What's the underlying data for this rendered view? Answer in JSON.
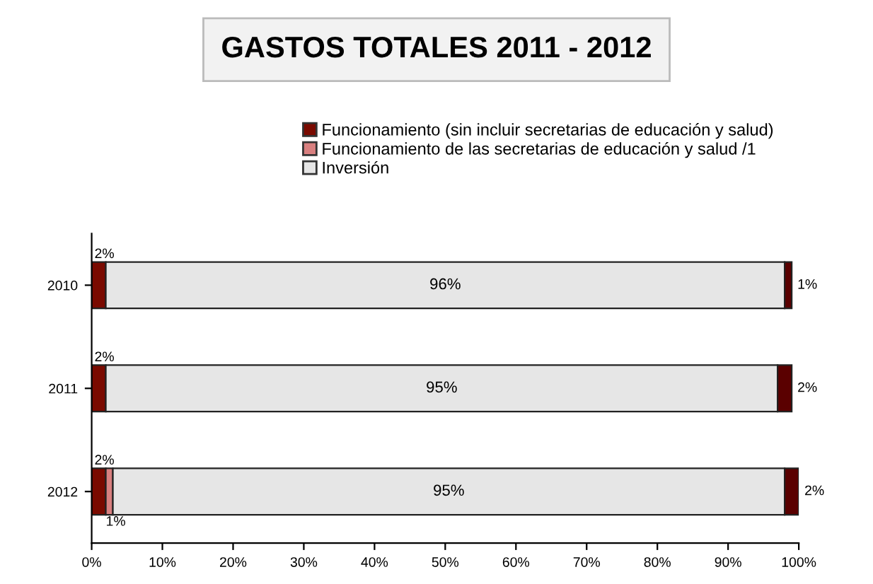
{
  "chart_data": {
    "type": "bar",
    "orientation": "horizontal",
    "stacked": true,
    "title": "GASTOS TOTALES 2011 - 2012",
    "categories": [
      "2010",
      "2011",
      "2012"
    ],
    "series": [
      {
        "name": "Funcionamiento (sin incluir secretarias de educación y salud)",
        "color": "#7a0a00",
        "values": [
          2,
          2,
          2
        ],
        "value_labels": [
          "2%",
          "2%",
          "2%"
        ]
      },
      {
        "name": "Funcionamiento de las secretarias de educación y salud /1",
        "color": "#d98080",
        "values": [
          null,
          null,
          1
        ],
        "value_labels": [
          null,
          null,
          "1%"
        ]
      },
      {
        "name": "Inversión",
        "color": "#e6e6e6",
        "values": [
          96,
          95,
          95
        ],
        "value_labels": [
          "96%",
          "95%",
          "95%"
        ]
      },
      {
        "color": "#5a0000",
        "values": [
          1,
          2,
          2
        ],
        "value_labels": [
          "1%",
          "2%",
          "2%"
        ]
      }
    ],
    "xlim": [
      0,
      100
    ],
    "xticks": [
      {
        "value": 0,
        "label": "0%"
      },
      {
        "value": 10,
        "label": "10%"
      },
      {
        "value": 20,
        "label": "20%"
      },
      {
        "value": 30,
        "label": "30%"
      },
      {
        "value": 40,
        "label": "40%"
      },
      {
        "value": 50,
        "label": "50%"
      },
      {
        "value": 60,
        "label": "60%"
      },
      {
        "value": 70,
        "label": "70%"
      },
      {
        "value": 80,
        "label": "80%"
      },
      {
        "value": 90,
        "label": "90%"
      },
      {
        "value": 100,
        "label": "100%"
      }
    ],
    "legend": "top",
    "grid": false
  }
}
